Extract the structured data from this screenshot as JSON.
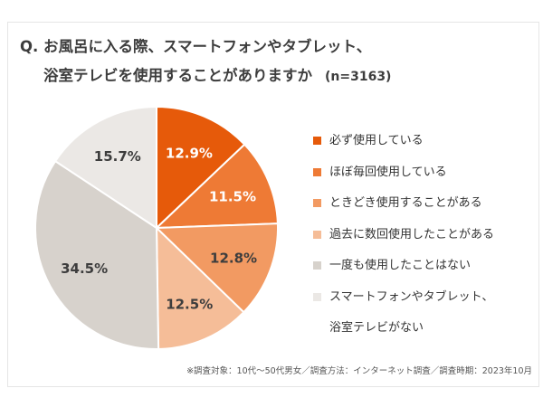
{
  "title": {
    "line1": "Q. お風呂に入る際、スマートフォンやタブレット、",
    "line2": "浴室テレビを使用することがありますか",
    "sample": "(n=3163)"
  },
  "chart_data": {
    "type": "pie",
    "start": "top",
    "direction": "clockwise",
    "slices": [
      {
        "name": "必ず使用している",
        "value": 12.9,
        "label": "12.9%",
        "color": "#e65a0a",
        "label_color": "#ffffff"
      },
      {
        "name": "ほぼ毎回使用している",
        "value": 11.5,
        "label": "11.5%",
        "color": "#ee7a35",
        "label_color": "#ffffff"
      },
      {
        "name": "ときどき使用することがある",
        "value": 12.8,
        "label": "12.8%",
        "color": "#f29a62",
        "label_color": "#3d3d3d"
      },
      {
        "name": "過去に数回使用したことがある",
        "value": 12.5,
        "label": "12.5%",
        "color": "#f5bd98",
        "label_color": "#3d3d3d"
      },
      {
        "name": "一度も使用したことはない",
        "value": 34.5,
        "label": "34.5%",
        "color": "#d7d2cc",
        "label_color": "#3d3d3d"
      },
      {
        "name": "スマートフォンやタブレット、\n浴室テレビがない",
        "value": 15.7,
        "label": "15.7%",
        "color": "#ebe8e5",
        "label_color": "#3d3d3d"
      }
    ],
    "legend_position": "right"
  },
  "footnote": "※調査対象：10代〜50代男女／調査方法：インターネット調査／調査時期：2023年10月"
}
